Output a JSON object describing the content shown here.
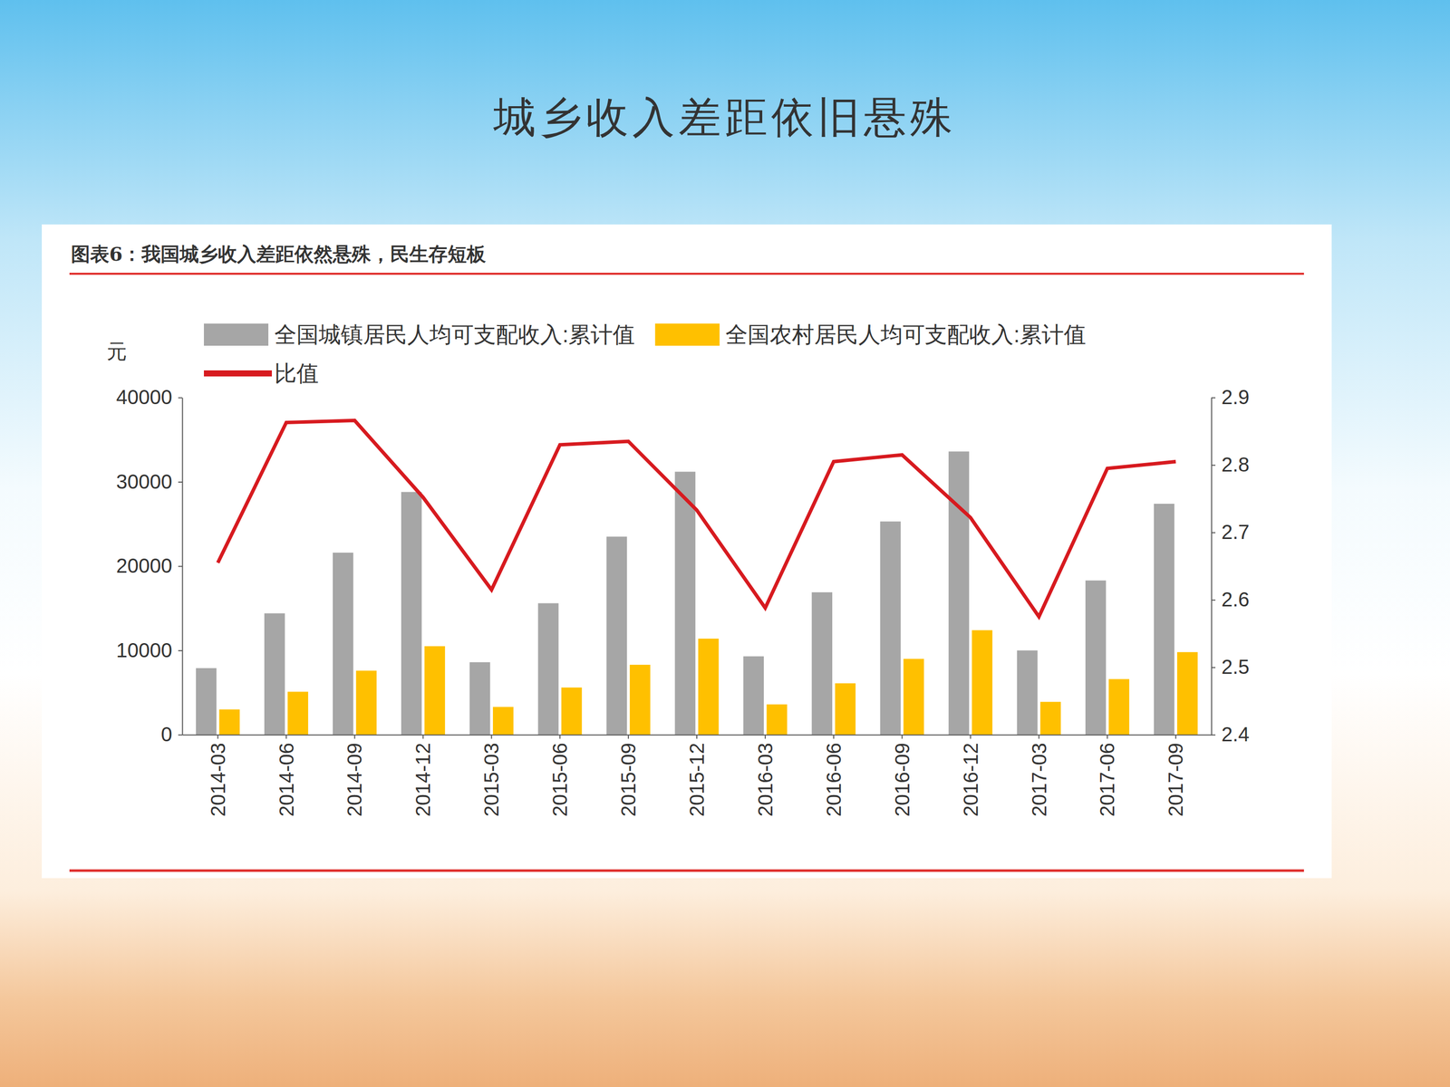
{
  "chart_data": {
    "type": "bar",
    "title": "城乡收入差距依旧悬殊",
    "subtitle": "图表6：我国城乡收入差距依然悬殊，民生存短板",
    "ylabel": "元",
    "categories": [
      "2014-03",
      "2014-06",
      "2014-09",
      "2014-12",
      "2015-03",
      "2015-06",
      "2015-09",
      "2015-12",
      "2016-03",
      "2016-06",
      "2016-09",
      "2016-12",
      "2017-03",
      "2017-06",
      "2017-09"
    ],
    "series": [
      {
        "name": "全国城镇居民人均可支配收入:累计值",
        "type": "bar",
        "color": "#a6a6a6",
        "values": [
          7900,
          14400,
          21600,
          28800,
          8600,
          15600,
          23500,
          31200,
          9300,
          16900,
          25300,
          33600,
          10000,
          18300,
          27400
        ]
      },
      {
        "name": "全国农村居民人均可支配收入:累计值",
        "type": "bar",
        "color": "#ffc000",
        "values": [
          3000,
          5100,
          7600,
          10500,
          3300,
          5600,
          8300,
          11400,
          3600,
          6100,
          9000,
          12400,
          3900,
          6600,
          9800
        ]
      },
      {
        "name": "比值",
        "type": "line",
        "axis": "y2",
        "color": "#d71a1f",
        "values": [
          2.655,
          2.863,
          2.866,
          2.752,
          2.615,
          2.83,
          2.835,
          2.733,
          2.588,
          2.805,
          2.815,
          2.722,
          2.575,
          2.795,
          2.805
        ]
      }
    ],
    "ylim": [
      0,
      40000
    ],
    "yticks": [
      0,
      10000,
      20000,
      30000,
      40000
    ],
    "y2lim": [
      2.4,
      2.9
    ],
    "y2ticks": [
      2.4,
      2.5,
      2.6,
      2.7,
      2.8,
      2.9
    ],
    "legend": "top",
    "grid": false
  }
}
